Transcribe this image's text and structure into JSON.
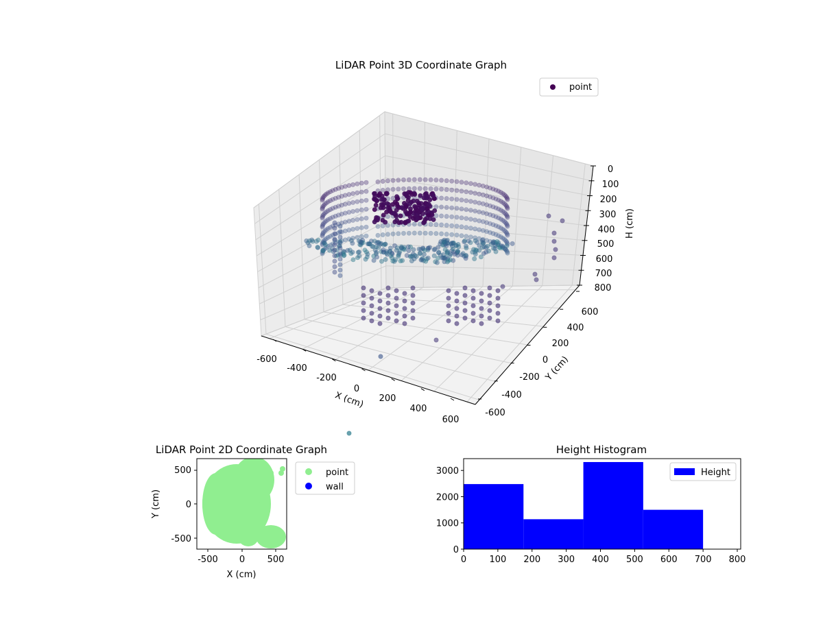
{
  "chart_data": [
    {
      "type": "scatter",
      "title": "LiDAR Point 3D Coordinate Graph",
      "xlabel": "X (cm)",
      "ylabel": "Y (cm)",
      "zlabel": "H (cm)",
      "x_ticks": [
        "-600",
        "-400",
        "-200",
        "0",
        "200",
        "400",
        "600"
      ],
      "y_ticks": [
        "-600",
        "-400",
        "-200",
        "0",
        "200",
        "400",
        "600"
      ],
      "z_ticks": [
        "0",
        "100",
        "200",
        "300",
        "400",
        "500",
        "600",
        "700",
        "800"
      ],
      "xlim": [
        -650,
        650
      ],
      "ylim": [
        -650,
        650
      ],
      "zlim": [
        0,
        800
      ],
      "z_axis_inverted": true,
      "colormap": "viridis",
      "legend": {
        "placement": "top-right",
        "entries": [
          "point"
        ]
      },
      "legend_color": "#440154",
      "grid": true,
      "series": [
        {
          "name": "point",
          "description_points": [
            {
              "x": -100,
              "y": 300,
              "h": 200
            },
            {
              "x": 650,
              "y": 0,
              "h": 450
            },
            {
              "x": -330,
              "y": -500,
              "h": 650
            },
            {
              "x": 100,
              "y": -600,
              "h": 700
            },
            {
              "x": 500,
              "y": -150,
              "h": 650
            },
            {
              "x": 250,
              "y": -650,
              "h": 650
            },
            {
              "x": 0,
              "y": -800,
              "h": 800
            }
          ]
        }
      ]
    },
    {
      "type": "scatter",
      "title": "LiDAR Point 2D Coordinate Graph",
      "xlabel": "X (cm)",
      "ylabel": "Y (cm)",
      "x_ticks": [
        "-500",
        "0",
        "500"
      ],
      "y_ticks": [
        "500",
        "0",
        "-500"
      ],
      "xlim": [
        -670,
        670
      ],
      "ylim": [
        -670,
        670
      ],
      "legend": {
        "placement": "right",
        "entries": [
          "point",
          "wall"
        ]
      },
      "series": [
        {
          "name": "point",
          "color": "#90ee90"
        },
        {
          "name": "wall",
          "color": "#0000ff"
        }
      ]
    },
    {
      "type": "bar",
      "title": "Height Histogram",
      "x_ticks": [
        "0",
        "100",
        "200",
        "300",
        "400",
        "500",
        "600",
        "700",
        "800"
      ],
      "y_ticks": [
        "0",
        "1000",
        "2000",
        "3000"
      ],
      "xlim": [
        0,
        810
      ],
      "ylim": [
        0,
        3450
      ],
      "bin_edges": [
        0,
        175,
        350,
        525,
        700
      ],
      "values": [
        2480,
        1140,
        3320,
        1500
      ],
      "color": "#0000ff",
      "legend": {
        "placement": "top-right",
        "entries": [
          "Height"
        ]
      }
    }
  ]
}
